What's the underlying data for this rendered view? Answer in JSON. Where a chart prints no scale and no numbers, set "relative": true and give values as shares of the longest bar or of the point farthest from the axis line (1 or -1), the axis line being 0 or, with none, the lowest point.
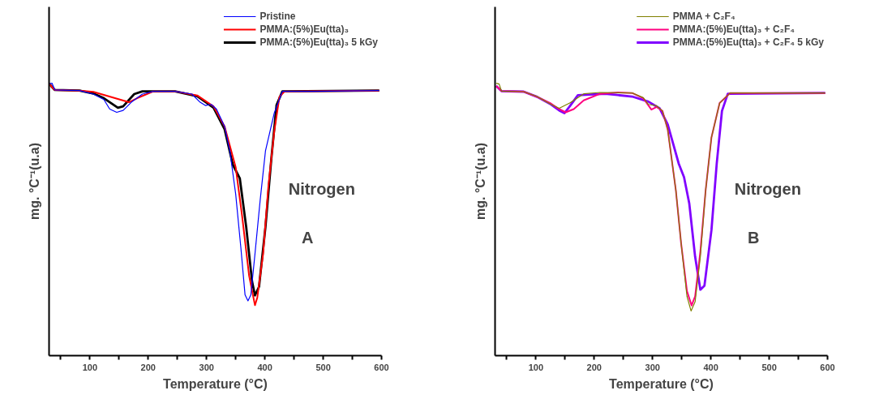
{
  "chart_data": [
    {
      "type": "line",
      "relative": true,
      "xlabel": "Temperature (°C)",
      "ylabel": "mg. °C⁻¹(u.a)",
      "xlim": [
        30,
        600
      ],
      "xticks": [
        {
          "value": 50,
          "label": null
        },
        100,
        {
          "value": 150,
          "label": null
        },
        200,
        {
          "value": 250,
          "label": null
        },
        300,
        {
          "value": 350,
          "label": null
        },
        400,
        {
          "value": 450,
          "label": null
        },
        500,
        {
          "value": 550,
          "label": null
        },
        600
      ],
      "tick_labels": "x",
      "grid": false,
      "legend": "top right",
      "marker": "none",
      "line_style": "solid",
      "annotations": [
        "Nitrogen",
        "A"
      ],
      "series": [
        {
          "name": "Pristine",
          "color": "#0000ff",
          "x": [
            30,
            35,
            40,
            82,
            106,
            124,
            134,
            146,
            157,
            171,
            190,
            209,
            246,
            275,
            289,
            298,
            308,
            317,
            331,
            340,
            350,
            359,
            366,
            371,
            376,
            383,
            392,
            401,
            416,
            430,
            481,
            596
          ],
          "values": [
            0.998,
            1.0,
            0.975,
            0.973,
            0.96,
            0.94,
            0.905,
            0.893,
            0.9,
            0.93,
            0.96,
            0.97,
            0.97,
            0.96,
            0.93,
            0.918,
            0.922,
            0.905,
            0.841,
            0.751,
            0.592,
            0.392,
            0.223,
            0.201,
            0.223,
            0.373,
            0.572,
            0.751,
            0.89,
            0.97,
            0.97,
            0.973
          ]
        },
        {
          "name": "PMMA:(5%)Eu(tta)₃",
          "color": "#ff0000",
          "x": [
            30,
            40,
            82,
            106,
            167,
            181,
            209,
            246,
            284,
            312,
            331,
            350,
            361,
            373,
            383,
            387,
            397,
            406,
            416,
            425,
            434,
            596
          ],
          "values": [
            0.998,
            0.975,
            0.973,
            0.968,
            0.93,
            0.945,
            0.97,
            0.97,
            0.955,
            0.915,
            0.841,
            0.691,
            0.512,
            0.293,
            0.185,
            0.213,
            0.373,
            0.622,
            0.821,
            0.95,
            0.97,
            0.973
          ]
        },
        {
          "name": "PMMA:(5%)Eu(tta)₃ 5 kGy",
          "color": "#000000",
          "x": [
            30,
            40,
            82,
            106,
            124,
            148,
            157,
            176,
            190,
            246,
            284,
            312,
            331,
            345,
            357,
            368,
            378,
            383,
            390,
            401,
            411,
            420,
            430,
            596
          ],
          "values": [
            0.998,
            0.975,
            0.973,
            0.962,
            0.945,
            0.91,
            0.915,
            0.96,
            0.97,
            0.97,
            0.952,
            0.91,
            0.831,
            0.701,
            0.651,
            0.472,
            0.273,
            0.221,
            0.253,
            0.472,
            0.721,
            0.92,
            0.97,
            0.973
          ]
        }
      ]
    },
    {
      "type": "line",
      "relative": true,
      "xlabel": "Temperature (°C)",
      "ylabel": "mg. °C⁻¹(u.a)",
      "xlim": [
        30,
        600
      ],
      "xticks": [
        {
          "value": 50,
          "label": null
        },
        100,
        {
          "value": 150,
          "label": null
        },
        200,
        {
          "value": 250,
          "label": null
        },
        300,
        {
          "value": 350,
          "label": null
        },
        400,
        {
          "value": 450,
          "label": null
        },
        500,
        {
          "value": 550,
          "label": null
        },
        600
      ],
      "tick_labels": "x",
      "grid": false,
      "legend": "top right",
      "marker": "none",
      "line_style": "solid",
      "annotations": [
        "Nitrogen",
        "B"
      ],
      "series": [
        {
          "name": "PMMA + C₂F₄",
          "color": "#808000",
          "x": [
            32,
            37,
            41,
            79,
            102,
            126,
            140,
            158,
            182,
            210,
            265,
            284,
            293,
            307,
            317,
            326,
            340,
            349,
            359,
            366,
            373,
            382,
            391,
            401,
            415,
            433,
            596
          ],
          "values": [
            1.0,
            0.997,
            0.971,
            0.969,
            0.951,
            0.922,
            0.908,
            0.927,
            0.961,
            0.966,
            0.964,
            0.947,
            0.922,
            0.917,
            0.898,
            0.83,
            0.606,
            0.412,
            0.218,
            0.164,
            0.198,
            0.363,
            0.606,
            0.801,
            0.927,
            0.964,
            0.964
          ]
        },
        {
          "name": "PMMA:(5%)Eu(tta)₃ + C₂F₄",
          "color": "#ff0080",
          "x": [
            32,
            41,
            79,
            102,
            126,
            140,
            151,
            165,
            182,
            210,
            240,
            265,
            284,
            298,
            307,
            317,
            326,
            340,
            349,
            359,
            367,
            373,
            382,
            391,
            401,
            415,
            433,
            596
          ],
          "values": [
            0.99,
            0.971,
            0.969,
            0.95,
            0.925,
            0.905,
            0.893,
            0.905,
            0.937,
            0.961,
            0.966,
            0.964,
            0.945,
            0.903,
            0.913,
            0.898,
            0.83,
            0.606,
            0.412,
            0.237,
            0.184,
            0.218,
            0.383,
            0.606,
            0.801,
            0.927,
            0.964,
            0.964
          ]
        },
        {
          "name": "PMMA:(5%)Eu(tta)₃ + C₂F₄ 5 kGy",
          "color": "#8000ff",
          "x": [
            32,
            41,
            79,
            102,
            126,
            140,
            149,
            158,
            172,
            219,
            265,
            293,
            312,
            326,
            345,
            354,
            363,
            373,
            382,
            389,
            401,
            410,
            419,
            429,
            596
          ],
          "values": [
            0.99,
            0.971,
            0.969,
            0.95,
            0.922,
            0.9,
            0.89,
            0.915,
            0.956,
            0.961,
            0.951,
            0.932,
            0.908,
            0.849,
            0.704,
            0.655,
            0.558,
            0.363,
            0.242,
            0.257,
            0.461,
            0.704,
            0.898,
            0.961,
            0.964
          ]
        }
      ]
    }
  ]
}
